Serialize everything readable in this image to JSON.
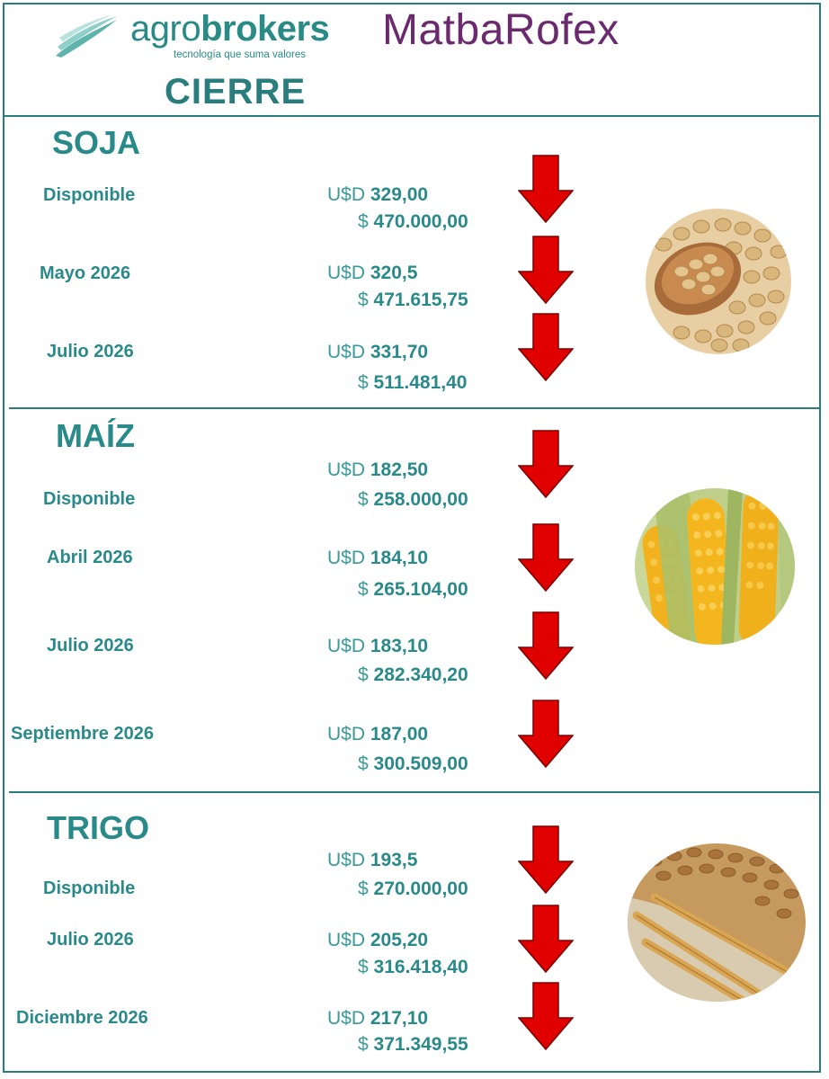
{
  "header": {
    "brand_prefix": "agro",
    "brand_bold": "brokers",
    "brand_tagline": "tecnología que suma valores",
    "partner": "MatbaRofex",
    "title": "CIERRE"
  },
  "currency_usd": "U$D",
  "currency_ars": "$",
  "colors": {
    "accent": "#2a8a8a",
    "arrow": "#e00000",
    "partner": "#6b2a6d"
  },
  "sections": [
    {
      "title": "SOJA",
      "image": "soybeans",
      "rows": [
        {
          "term": "Disponible",
          "usd": "329,00",
          "ars": "470.000,00",
          "trend": "down-arrow"
        },
        {
          "term": "Mayo 2026",
          "usd": "320,5",
          "ars": "471.615,75",
          "trend": "down-arrow"
        },
        {
          "term": "Julio 2026",
          "usd": "331,70",
          "ars": "511.481,40",
          "trend": "down-arrow"
        }
      ]
    },
    {
      "title": "MAÍZ",
      "image": "corn",
      "rows": [
        {
          "term": "Disponible",
          "usd": "182,50",
          "ars": "258.000,00",
          "trend": "down-arrow"
        },
        {
          "term": "Abril 2026",
          "usd": "184,10",
          "ars": "265.104,00",
          "trend": "down-arrow"
        },
        {
          "term": "Julio 2026",
          "usd": "183,10",
          "ars": "282.340,20",
          "trend": "down-arrow"
        },
        {
          "term": "Septiembre 2026",
          "usd": "187,00",
          "ars": "300.509,00",
          "trend": "down-arrow"
        }
      ]
    },
    {
      "title": "TRIGO",
      "image": "wheat",
      "rows": [
        {
          "term": "Disponible",
          "usd": "193,5",
          "ars": "270.000,00",
          "trend": "down-arrow"
        },
        {
          "term": "Julio 2026",
          "usd": "205,20",
          "ars": "316.418,40",
          "trend": "down-arrow"
        },
        {
          "term": "Diciembre 2026",
          "usd": "217,10",
          "ars": "371.349,55",
          "trend": "down-arrow"
        }
      ]
    }
  ]
}
